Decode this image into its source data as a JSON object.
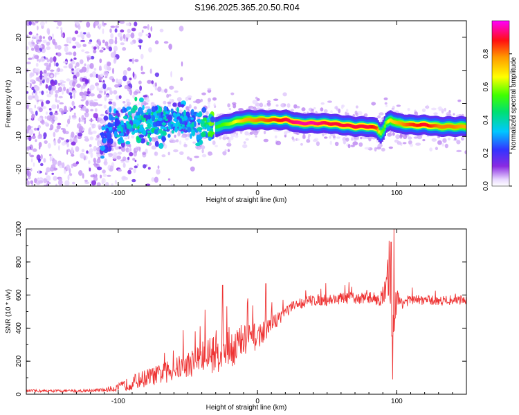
{
  "title": "S196.2025.365.20.50.R04",
  "chart_data": [
    {
      "type": "heatmap",
      "xlabel": "Height of straight line (km)",
      "ylabel": "Frequency (Hz)",
      "xlim": [
        -166,
        150
      ],
      "ylim": [
        -25,
        25
      ],
      "xticks": [
        -100,
        0,
        100
      ],
      "yticks": [
        -20,
        -10,
        0,
        10,
        20
      ],
      "ridge": {
        "x": [
          -110,
          -100,
          -90,
          -80,
          -70,
          -60,
          -50,
          -40,
          -30,
          -20,
          -10,
          0,
          10,
          20,
          30,
          40,
          50,
          60,
          70,
          80,
          85,
          88,
          90,
          92,
          95,
          100,
          110,
          120,
          130,
          140,
          150
        ],
        "freq": [
          -10,
          -7,
          -6,
          -6,
          -6,
          -5,
          -6,
          -7,
          -7,
          -6,
          -5,
          -5,
          -5,
          -5,
          -6,
          -6,
          -6,
          -6.5,
          -7,
          -7,
          -7.5,
          -9,
          -8,
          -6,
          -5,
          -6,
          -6.5,
          -6.5,
          -7,
          -7,
          -7
        ],
        "amplitude": [
          0.25,
          0.3,
          0.35,
          0.4,
          0.35,
          0.3,
          0.3,
          0.35,
          0.5,
          0.6,
          0.75,
          0.8,
          0.85,
          0.9,
          0.95,
          0.95,
          0.9,
          0.9,
          0.9,
          0.9,
          0.85,
          0.6,
          0.55,
          0.6,
          0.7,
          0.75,
          0.85,
          0.9,
          0.8,
          0.8,
          0.75
        ]
      },
      "colorbar": {
        "label": "Normalized spectral amplitude",
        "range": [
          0,
          1
        ],
        "ticks": [
          "0.0",
          "0.2",
          "0.4",
          "0.6",
          "0.8"
        ],
        "tick_values": [
          0,
          0.2,
          0.4,
          0.6,
          0.8
        ],
        "colormap": "rainbow: white-violet-purple-blue-cyan-green-yellow-orange-red-magenta"
      }
    },
    {
      "type": "line",
      "xlabel": "Height of straight line (km)",
      "ylabel": "SNR (10 * v/v)",
      "xlim": [
        -166,
        150
      ],
      "ylim": [
        0,
        1000
      ],
      "xticks": [
        -100,
        0,
        100
      ],
      "yticks": [
        0,
        200,
        400,
        600,
        800,
        1000
      ],
      "line_color": "#ee3333",
      "envelope": {
        "x": [
          -166,
          -130,
          -110,
          -100,
          -90,
          -80,
          -70,
          -60,
          -50,
          -40,
          -30,
          -20,
          -10,
          0,
          10,
          20,
          30,
          40,
          50,
          60,
          70,
          80,
          85,
          90,
          93,
          95,
          97,
          99,
          100,
          105,
          110,
          120,
          130,
          140,
          150
        ],
        "snr": [
          20,
          20,
          25,
          40,
          70,
          100,
          120,
          150,
          180,
          220,
          260,
          280,
          320,
          350,
          420,
          500,
          550,
          570,
          570,
          580,
          580,
          585,
          580,
          575,
          650,
          800,
          250,
          600,
          560,
          560,
          570,
          570,
          565,
          570,
          570
        ]
      },
      "noise": {
        "x": [
          -166,
          -130,
          -110,
          -100,
          -90,
          -80,
          -70,
          -60,
          -50,
          -40,
          -30,
          -20,
          -10,
          0,
          10,
          20,
          30,
          40,
          50,
          60,
          70,
          80,
          85,
          90,
          93,
          95,
          97,
          99,
          100,
          105,
          110,
          120,
          130,
          140,
          150
        ],
        "amp": [
          8,
          8,
          12,
          25,
          45,
          55,
          60,
          70,
          80,
          100,
          130,
          130,
          110,
          80,
          50,
          40,
          35,
          35,
          35,
          35,
          35,
          35,
          40,
          60,
          120,
          200,
          200,
          150,
          80,
          35,
          30,
          30,
          30,
          30,
          30
        ]
      },
      "spikes": [
        {
          "x": -25,
          "snr": 660
        },
        {
          "x": -7,
          "snr": 580
        },
        {
          "x": 6,
          "snr": 670
        },
        {
          "x": 90,
          "snr": 650
        },
        {
          "x": 96,
          "snr": 920
        },
        {
          "x": 98,
          "snr": 1000
        },
        {
          "x": 97,
          "snr": 90
        }
      ]
    }
  ]
}
